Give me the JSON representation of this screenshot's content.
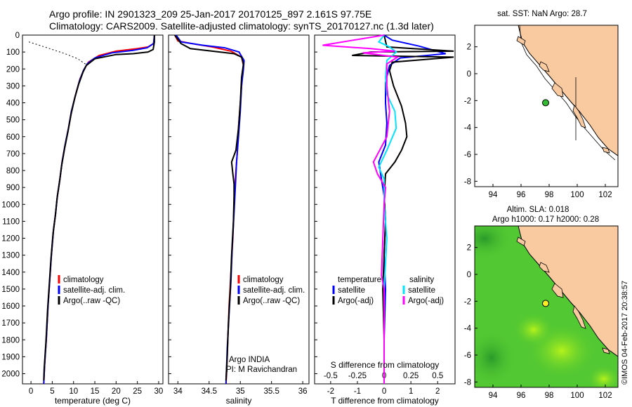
{
  "header": {
    "line1": "Argo profile: IN 2901323_209 25-Jan-2017 20170125_897 2.161S 97.75E",
    "line2": "Climatology: CARS2009. Satellite-adjusted climatology: synTS_20170127.nc (1.3d later)"
  },
  "colors": {
    "clim": "#ff0000",
    "sat": "#0000ff",
    "argo": "#000000",
    "sat_s": "#00e5ff",
    "argo_s": "#ff00ff",
    "land": "#f9c9a0",
    "ocean_bg": "#52c832",
    "dot_sst": "#33bb33",
    "dot_sla": "#ffee22"
  },
  "side_text": "©IMOS 04-Feb-2017 20:38:57",
  "chart_data": [
    {
      "id": "temperature",
      "type": "line",
      "xlabel": "temperature (deg C)",
      "ylabel": "",
      "xlim": [
        -2,
        31
      ],
      "ylim": [
        2060,
        0
      ],
      "xticks": [
        0,
        5,
        10,
        15,
        20,
        25,
        30
      ],
      "yticks": [
        0,
        100,
        200,
        300,
        400,
        500,
        600,
        700,
        800,
        900,
        1000,
        1100,
        1200,
        1300,
        1400,
        1500,
        1600,
        1700,
        1800,
        1900,
        2000
      ],
      "legend": [
        "climatology",
        "satellite-adj. clim.",
        "Argo(..raw -QC)"
      ],
      "series": [
        {
          "name": "climatology",
          "color": "#ff0000",
          "points": [
            [
              29,
              0
            ],
            [
              28.8,
              50
            ],
            [
              27.5,
              70
            ],
            [
              25,
              80
            ],
            [
              20,
              95
            ],
            [
              16,
              120
            ],
            [
              13.5,
              160
            ],
            [
              12.5,
              200
            ],
            [
              11.5,
              260
            ],
            [
              10.5,
              350
            ],
            [
              9.5,
              450
            ],
            [
              8.8,
              550
            ],
            [
              8,
              650
            ],
            [
              7.3,
              750
            ],
            [
              6.8,
              850
            ],
            [
              6.2,
              950
            ],
            [
              5.8,
              1050
            ],
            [
              5.3,
              1150
            ],
            [
              4.8,
              1300
            ],
            [
              4.4,
              1450
            ],
            [
              4,
              1600
            ],
            [
              3.6,
              1800
            ],
            [
              3.2,
              1950
            ],
            [
              3,
              2060
            ]
          ]
        },
        {
          "name": "satellite-adj. clim.",
          "color": "#0000ff",
          "points": [
            [
              29,
              0
            ],
            [
              28.8,
              50
            ],
            [
              27.3,
              75
            ],
            [
              24,
              90
            ],
            [
              19,
              105
            ],
            [
              15,
              135
            ],
            [
              13.2,
              170
            ],
            [
              12.3,
              210
            ],
            [
              11.4,
              270
            ],
            [
              10.4,
              360
            ],
            [
              9.5,
              450
            ],
            [
              8.8,
              550
            ],
            [
              8,
              650
            ],
            [
              7.3,
              750
            ],
            [
              6.8,
              850
            ],
            [
              6.2,
              950
            ],
            [
              5.8,
              1050
            ],
            [
              5.3,
              1150
            ],
            [
              4.8,
              1300
            ],
            [
              4.4,
              1450
            ],
            [
              4,
              1600
            ],
            [
              3.6,
              1800
            ],
            [
              3.2,
              1950
            ],
            [
              3,
              2060
            ]
          ]
        },
        {
          "name": "Argo(..raw -QC)",
          "color": "#000000",
          "points": [
            [
              29,
              0
            ],
            [
              29,
              40
            ],
            [
              28.7,
              85
            ],
            [
              27.5,
              100
            ],
            [
              24,
              110
            ],
            [
              20,
              115
            ],
            [
              15,
              140
            ],
            [
              13,
              180
            ],
            [
              12.2,
              220
            ],
            [
              11.2,
              290
            ],
            [
              10.3,
              370
            ],
            [
              9.4,
              470
            ],
            [
              8.7,
              570
            ],
            [
              7.9,
              670
            ],
            [
              7.2,
              770
            ],
            [
              6.7,
              870
            ],
            [
              6.1,
              970
            ],
            [
              5.7,
              1070
            ],
            [
              5.2,
              1170
            ],
            [
              4.7,
              1320
            ],
            [
              4.3,
              1470
            ],
            [
              3.9,
              1620
            ],
            [
              3.5,
              1820
            ],
            [
              3.1,
              1970
            ],
            [
              3,
              2040
            ]
          ]
        },
        {
          "name": "",
          "color": "#000000",
          "dashed": true,
          "points": [
            [
              -0.5,
              40
            ],
            [
              2,
              60
            ],
            [
              5,
              85
            ],
            [
              8,
              110
            ],
            [
              11,
              140
            ],
            [
              13,
              175
            ]
          ]
        }
      ]
    },
    {
      "id": "salinity",
      "type": "line",
      "xlabel": "salinity",
      "ylabel": "",
      "xlim": [
        33.85,
        36.1
      ],
      "ylim": [
        2060,
        0
      ],
      "xticks": [
        34,
        34.5,
        35,
        35.5,
        36
      ],
      "legend": [
        "climatology",
        "satellite-adj. clim.",
        "Argo(..raw -QC)"
      ],
      "annotation": [
        "Argo INDIA",
        "PI: M Ravichandran"
      ],
      "series": [
        {
          "name": "climatology",
          "color": "#ff0000",
          "points": [
            [
              33.95,
              0
            ],
            [
              34,
              35
            ],
            [
              34.3,
              55
            ],
            [
              34.55,
              70
            ],
            [
              34.85,
              95
            ],
            [
              35.02,
              130
            ],
            [
              35.05,
              180
            ],
            [
              35.03,
              250
            ],
            [
              35.0,
              400
            ],
            [
              34.97,
              550
            ],
            [
              34.95,
              700
            ],
            [
              34.92,
              850
            ],
            [
              34.9,
              1000
            ],
            [
              34.88,
              1200
            ],
            [
              34.85,
              1400
            ],
            [
              34.82,
              1600
            ],
            [
              34.8,
              1800
            ],
            [
              34.78,
              2000
            ],
            [
              34.77,
              2060
            ]
          ]
        },
        {
          "name": "satellite-adj. clim.",
          "color": "#0000ff",
          "points": [
            [
              33.97,
              0
            ],
            [
              34.05,
              40
            ],
            [
              34.4,
              60
            ],
            [
              34.75,
              75
            ],
            [
              34.98,
              100
            ],
            [
              35.06,
              150
            ],
            [
              35.05,
              200
            ],
            [
              35.02,
              300
            ],
            [
              35.0,
              450
            ],
            [
              34.97,
              600
            ],
            [
              34.94,
              750
            ],
            [
              34.92,
              900
            ],
            [
              34.9,
              1050
            ],
            [
              34.87,
              1250
            ],
            [
              34.85,
              1450
            ],
            [
              34.82,
              1650
            ],
            [
              34.79,
              1850
            ],
            [
              34.77,
              2060
            ]
          ]
        },
        {
          "name": "Argo(..raw -QC)",
          "color": "#000000",
          "points": [
            [
              33.95,
              0
            ],
            [
              34.05,
              50
            ],
            [
              34.2,
              80
            ],
            [
              34.55,
              95
            ],
            [
              34.9,
              110
            ],
            [
              35.02,
              130
            ],
            [
              35.05,
              170
            ],
            [
              35.02,
              250
            ],
            [
              35.0,
              400
            ],
            [
              34.97,
              550
            ],
            [
              34.93,
              680
            ],
            [
              34.86,
              750
            ],
            [
              34.88,
              820
            ],
            [
              34.9,
              880
            ],
            [
              34.9,
              950
            ],
            [
              34.89,
              1100
            ],
            [
              34.86,
              1300
            ],
            [
              34.84,
              1500
            ],
            [
              34.81,
              1700
            ],
            [
              34.79,
              1900
            ],
            [
              34.77,
              2040
            ]
          ]
        }
      ]
    },
    {
      "id": "difference",
      "type": "line",
      "xlabel": "T difference from climatology",
      "title_bottom": "S difference from climatology",
      "xlim": [
        -2.6,
        2.65
      ],
      "ylim": [
        2060,
        0
      ],
      "xticks": [
        -2,
        -1,
        0,
        1,
        2
      ],
      "top_ticks": [
        [
          "-0.5",
          -2
        ],
        [
          "-0.25",
          -1
        ],
        [
          "0",
          0
        ],
        [
          "0.25",
          1
        ],
        [
          "0.5",
          2
        ]
      ],
      "legend_temp": [
        "temperature",
        "satellite",
        "Argo(-adj)"
      ],
      "legend_sal": [
        "salinity",
        "satellite",
        "Argo(-adj)"
      ],
      "series": [
        {
          "name": "satellite",
          "group": "temperature",
          "color": "#0000ff",
          "points": [
            [
              0,
              0
            ],
            [
              0.3,
              30
            ],
            [
              1.3,
              65
            ],
            [
              2.3,
              110
            ],
            [
              0.6,
              135
            ],
            [
              0.2,
              180
            ],
            [
              0.05,
              280
            ],
            [
              0.05,
              400
            ],
            [
              0.1,
              520
            ],
            [
              0.05,
              650
            ],
            [
              -0.2,
              750
            ],
            [
              -0.1,
              850
            ],
            [
              0,
              950
            ],
            [
              0.05,
              1100
            ],
            [
              0,
              1300
            ],
            [
              0.05,
              1500
            ],
            [
              0,
              1800
            ],
            [
              0,
              2060
            ]
          ]
        },
        {
          "name": "Argo(-adj)",
          "group": "temperature",
          "color": "#000000",
          "points": [
            [
              0,
              0
            ],
            [
              0.1,
              70
            ],
            [
              2.6,
              95
            ],
            [
              -0.5,
              100
            ],
            [
              -1.2,
              120
            ],
            [
              2.6,
              130
            ],
            [
              0.3,
              160
            ],
            [
              0.2,
              210
            ],
            [
              0.35,
              300
            ],
            [
              0.65,
              420
            ],
            [
              0.8,
              520
            ],
            [
              0.85,
              600
            ],
            [
              0.65,
              680
            ],
            [
              0.4,
              750
            ],
            [
              0.05,
              820
            ],
            [
              0,
              950
            ],
            [
              0.05,
              1100
            ],
            [
              0,
              1300
            ],
            [
              -0.05,
              1500
            ],
            [
              0,
              1800
            ],
            [
              0,
              2060
            ]
          ]
        },
        {
          "name": "satellite",
          "group": "salinity",
          "color": "#00e5ff",
          "points": [
            [
              0,
              0
            ],
            [
              -0.2,
              40
            ],
            [
              0.2,
              70
            ],
            [
              0.45,
              100
            ],
            [
              0.1,
              150
            ],
            [
              0.05,
              250
            ],
            [
              0.1,
              350
            ],
            [
              0.4,
              450
            ],
            [
              0.45,
              550
            ],
            [
              0.1,
              680
            ],
            [
              -0.2,
              780
            ],
            [
              0,
              850
            ],
            [
              0,
              1000
            ],
            [
              0.1,
              1200
            ],
            [
              0,
              1500
            ],
            [
              0,
              2060
            ]
          ]
        },
        {
          "name": "Argo(-adj)",
          "group": "salinity",
          "color": "#ff00ff",
          "points": [
            [
              0,
              0
            ],
            [
              -2.3,
              60
            ],
            [
              -0.5,
              80
            ],
            [
              0.4,
              95
            ],
            [
              -0.8,
              105
            ],
            [
              0.5,
              130
            ],
            [
              0.1,
              170
            ],
            [
              0.1,
              300
            ],
            [
              0.2,
              450
            ],
            [
              0.1,
              600
            ],
            [
              -0.4,
              750
            ],
            [
              -0.25,
              820
            ],
            [
              0.05,
              900
            ],
            [
              0,
              1000
            ],
            [
              -0.1,
              1420
            ],
            [
              0,
              1500
            ],
            [
              0,
              2060
            ]
          ]
        }
      ]
    },
    {
      "id": "sst_map",
      "type": "map",
      "title": "sat. SST: NaN Argo: 28.7",
      "xlim": [
        92.7,
        102.9
      ],
      "ylim": [
        -8.4,
        3.6
      ],
      "xticks": [
        94,
        96,
        98,
        100,
        102
      ],
      "yticks": [
        -8,
        -6,
        -4,
        -2,
        0,
        2
      ],
      "argo_position": [
        97.75,
        -2.161
      ]
    },
    {
      "id": "sla_map",
      "type": "map",
      "title_line1": "Altim. SLA: 0.018",
      "title_line2": "Argo h1000: 0.17 h2000: 0.28",
      "xlim": [
        92.7,
        102.9
      ],
      "ylim": [
        -8.4,
        3.6
      ],
      "xticks": [
        94,
        96,
        98,
        100,
        102
      ],
      "yticks": [
        -8,
        -6,
        -4,
        -2,
        0,
        2
      ],
      "argo_position": [
        97.75,
        -2.161
      ]
    }
  ]
}
